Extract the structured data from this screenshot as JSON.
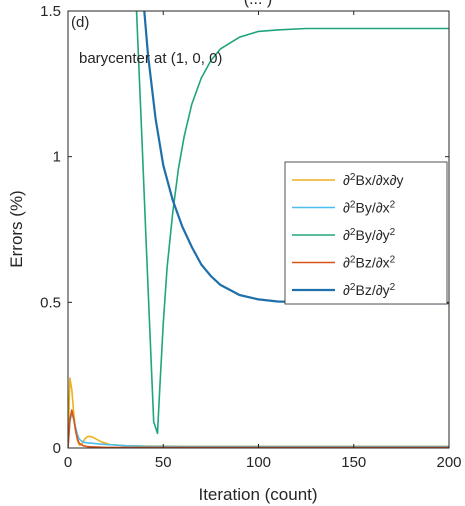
{
  "chart_data": {
    "type": "line",
    "title_fragment": "(... )",
    "panel_label": "(d)",
    "annotation": "barycenter at (1, 0, 0)",
    "xlabel": "Iteration (count)",
    "ylabel": "Errors (%)",
    "xlim": [
      0,
      200
    ],
    "ylim": [
      0,
      1.5
    ],
    "xticks": [
      0,
      50,
      100,
      150,
      200
    ],
    "xtick_labels": [
      "0",
      "50",
      "100",
      "150",
      "200"
    ],
    "yticks": [
      0,
      0.5,
      1,
      1.5
    ],
    "ytick_labels": [
      "0",
      "0.5",
      "1",
      "1.5"
    ],
    "grid": false,
    "legend_position": "center-right",
    "series": [
      {
        "name": "∂²Bx/∂x∂y",
        "legend_parts": [
          [
            "∂",
            ""
          ],
          [
            "2",
            "sup"
          ],
          [
            "Bx/∂x∂y",
            ""
          ]
        ],
        "color": "#EDB120",
        "width": 1.6,
        "x": [
          0,
          1,
          2,
          3,
          4,
          5,
          6,
          7,
          8,
          9,
          10,
          11,
          13,
          15,
          18,
          22,
          30,
          40,
          60,
          100,
          200
        ],
        "y": [
          0.0,
          0.24,
          0.2,
          0.12,
          0.06,
          0.025,
          0.01,
          0.012,
          0.022,
          0.032,
          0.038,
          0.04,
          0.037,
          0.03,
          0.02,
          0.012,
          0.008,
          0.007,
          0.006,
          0.006,
          0.006
        ]
      },
      {
        "name": "∂²By/∂x²",
        "legend_parts": [
          [
            "∂",
            ""
          ],
          [
            "2",
            "sup"
          ],
          [
            "By/∂x",
            ""
          ],
          [
            "2",
            "sup"
          ]
        ],
        "color": "#4DBEEE",
        "width": 1.6,
        "x": [
          0,
          1,
          2,
          3,
          4,
          5,
          6,
          8,
          10,
          13,
          16,
          20,
          25,
          30,
          40,
          60,
          100,
          200
        ],
        "y": [
          0.0,
          0.09,
          0.12,
          0.1,
          0.07,
          0.045,
          0.03,
          0.02,
          0.018,
          0.016,
          0.014,
          0.012,
          0.01,
          0.008,
          0.006,
          0.005,
          0.005,
          0.005
        ],
        "note": "light blue"
      },
      {
        "name": "∂²By/∂y²",
        "legend_parts": [
          [
            "∂",
            ""
          ],
          [
            "2",
            "sup"
          ],
          [
            "By/∂y",
            ""
          ],
          [
            "2",
            "sup"
          ]
        ],
        "color": "#20A57E",
        "width": 1.6,
        "x": [
          35,
          37,
          39,
          41,
          43,
          45,
          47,
          48,
          50,
          52,
          55,
          58,
          61,
          65,
          70,
          75,
          80,
          90,
          100,
          110,
          125,
          150,
          175,
          200
        ],
        "y": [
          1.65,
          1.34,
          1.03,
          0.71,
          0.4,
          0.09,
          0.05,
          0.18,
          0.43,
          0.62,
          0.81,
          0.96,
          1.07,
          1.18,
          1.27,
          1.33,
          1.37,
          1.41,
          1.43,
          1.435,
          1.44,
          1.44,
          1.44,
          1.44
        ]
      },
      {
        "name": "∂²Bz/∂x²",
        "legend_parts": [
          [
            "∂",
            ""
          ],
          [
            "2",
            "sup"
          ],
          [
            "Bz/∂x",
            ""
          ],
          [
            "2",
            "sup"
          ]
        ],
        "color": "#D95319",
        "width": 1.6,
        "x": [
          0,
          1,
          2,
          3,
          4,
          5,
          6,
          8,
          10,
          12,
          15,
          20,
          30,
          50,
          100,
          200
        ],
        "y": [
          0.0,
          0.1,
          0.13,
          0.1,
          0.06,
          0.03,
          0.015,
          0.008,
          0.005,
          0.004,
          0.003,
          0.002,
          0.002,
          0.002,
          0.002,
          0.002
        ]
      },
      {
        "name": "∂²Bz/∂y²",
        "legend_parts": [
          [
            "∂",
            ""
          ],
          [
            "2",
            "sup"
          ],
          [
            "Bz/∂y",
            ""
          ],
          [
            "2",
            "sup"
          ]
        ],
        "color": "#1F6FAA",
        "width": 2.2,
        "x": [
          39,
          42,
          46,
          50,
          55,
          60,
          65,
          70,
          75,
          80,
          90,
          100,
          110,
          125,
          150,
          175,
          200
        ],
        "y": [
          1.58,
          1.35,
          1.13,
          0.97,
          0.85,
          0.76,
          0.69,
          0.63,
          0.59,
          0.56,
          0.525,
          0.51,
          0.503,
          0.5,
          0.498,
          0.497,
          0.497
        ]
      }
    ]
  }
}
